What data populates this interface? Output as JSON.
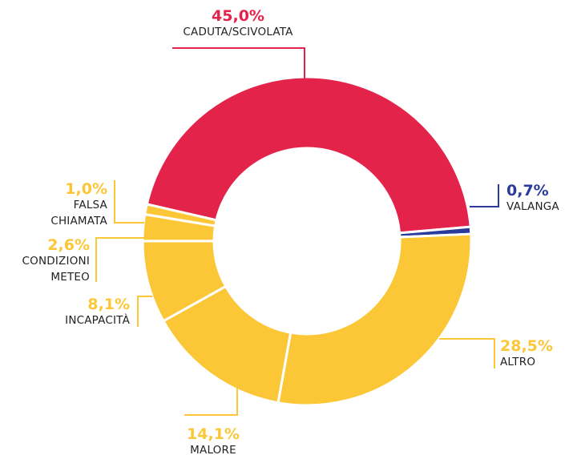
{
  "chart_data": {
    "type": "donut",
    "categories": [
      "CADUTA/SCIVOLATA",
      "VALANGA",
      "ALTRO",
      "MALORE",
      "INCAPACITÀ",
      "CONDIZIONI METEO",
      "FALSA CHIAMATA"
    ],
    "values": [
      45.0,
      0.7,
      28.5,
      14.1,
      8.1,
      2.6,
      1.0
    ],
    "value_labels": [
      "45,0%",
      "0,7%",
      "28,5%",
      "14,1%",
      "8,1%",
      "2,6%",
      "1,0%"
    ],
    "colors": [
      "#e4234b",
      "#2a3b9b",
      "#fcc737",
      "#fcc737",
      "#fcc737",
      "#fcc737",
      "#fcc737"
    ]
  }
}
